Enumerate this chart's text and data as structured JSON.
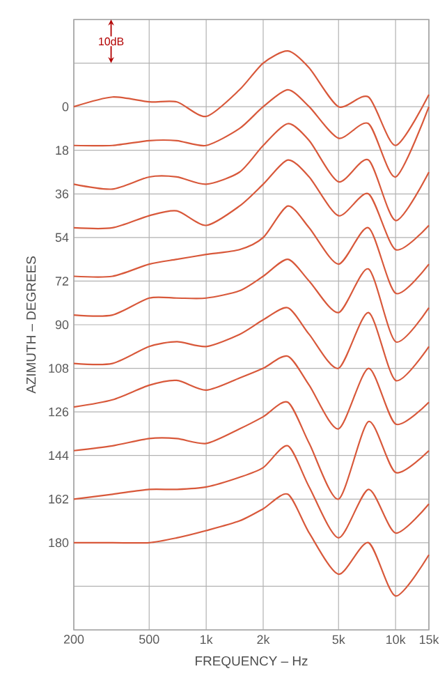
{
  "chart_data": {
    "type": "line",
    "xlabel": "FREQUENCY – Hz",
    "ylabel": "AZIMUTH – DEGREES",
    "annotations": [
      "10dB"
    ],
    "x": [
      200,
      320,
      500,
      700,
      1000,
      1500,
      2000,
      2700,
      3500,
      5000,
      7200,
      10000,
      15000
    ],
    "series": [
      {
        "color": "#d8583a",
        "values": [
          0,
          -4,
          -2,
          -2,
          4,
          -7,
          -18,
          -23,
          -16,
          0,
          -4,
          16,
          -5
        ]
      },
      {
        "color": "#d8583a",
        "values": [
          16,
          16,
          14,
          14,
          16,
          9,
          0,
          -7,
          0,
          13,
          7,
          29,
          0
        ]
      },
      {
        "color": "#d8583a",
        "values": [
          32,
          34,
          29,
          29,
          32,
          27,
          16,
          7,
          14,
          31,
          22,
          47,
          27
        ]
      },
      {
        "color": "#d8583a",
        "values": [
          50,
          50,
          45,
          43,
          49,
          41,
          32,
          22,
          29,
          45,
          36,
          59,
          49
        ]
      },
      {
        "color": "#d8583a",
        "values": [
          70,
          70,
          65,
          63,
          61,
          59,
          54,
          41,
          50,
          65,
          50,
          77,
          65
        ]
      },
      {
        "color": "#d8583a",
        "values": [
          86,
          86,
          79,
          79,
          79,
          76,
          70,
          63,
          72,
          85,
          67,
          97,
          83
        ]
      },
      {
        "color": "#d8583a",
        "values": [
          106,
          106,
          99,
          97,
          99,
          94,
          88,
          83,
          94,
          108,
          85,
          113,
          99
        ]
      },
      {
        "color": "#d8583a",
        "values": [
          124,
          121,
          115,
          113,
          117,
          112,
          108,
          103,
          115,
          133,
          108,
          131,
          122
        ]
      },
      {
        "color": "#d8583a",
        "values": [
          142,
          140,
          137,
          137,
          139,
          133,
          128,
          122,
          139,
          162,
          130,
          151,
          142
        ]
      },
      {
        "color": "#d8583a",
        "values": [
          162,
          160,
          158,
          158,
          157,
          153,
          149,
          140,
          157,
          178,
          158,
          176,
          164
        ]
      },
      {
        "color": "#d8583a",
        "values": [
          180,
          180,
          180,
          178,
          175,
          171,
          166,
          160,
          176,
          193,
          180,
          202,
          185
        ]
      }
    ],
    "xlim": [
      200,
      15000
    ],
    "ylim": [
      216,
      -36
    ],
    "log": "x",
    "grid": true,
    "line_style": "solid",
    "xticks": [
      200,
      500,
      {
        "value": 1000,
        "label": "1k"
      },
      {
        "value": 2000,
        "label": "2k"
      },
      {
        "value": 5000,
        "label": "5k"
      },
      {
        "value": 10000,
        "label": "10k"
      },
      {
        "value": 15000,
        "label": "15k"
      }
    ],
    "yticks": [
      {
        "value": -36,
        "label": null
      },
      {
        "value": -18,
        "label": null
      },
      0,
      18,
      36,
      54,
      72,
      90,
      108,
      126,
      144,
      162,
      180,
      {
        "value": 198,
        "label": null
      },
      {
        "value": 216,
        "label": null
      }
    ]
  }
}
